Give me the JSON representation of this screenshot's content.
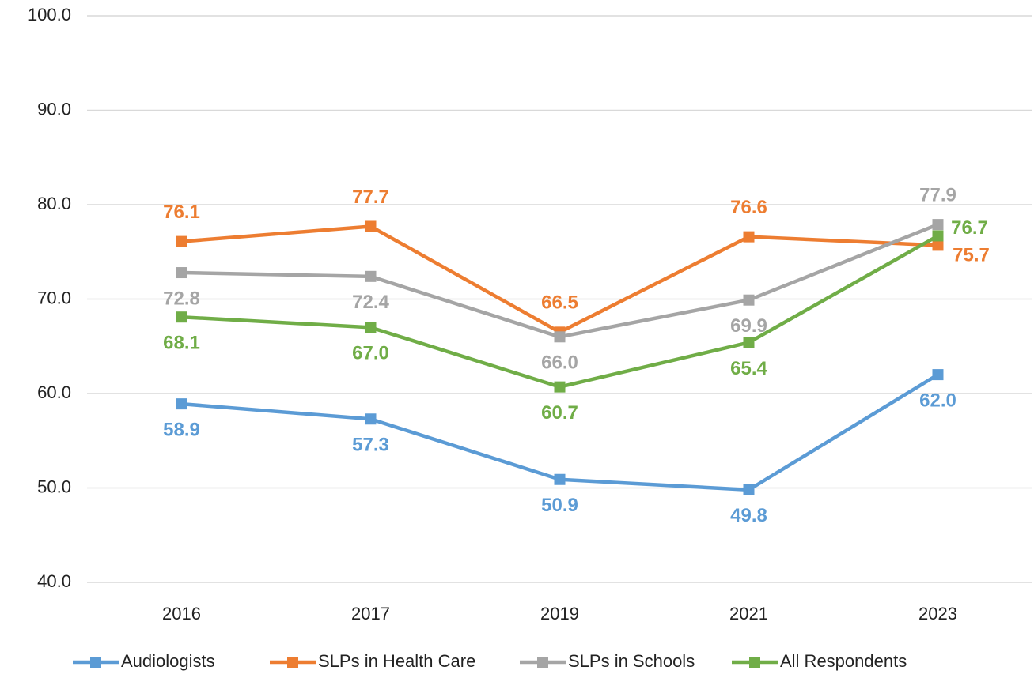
{
  "chart_data": {
    "type": "line",
    "categories": [
      "2016",
      "2017",
      "2019",
      "2021",
      "2023"
    ],
    "series": [
      {
        "name": "Audiologists",
        "color": "#5b9bd5",
        "values": [
          58.9,
          57.3,
          50.9,
          49.8,
          62.0
        ],
        "value_labels": [
          "58.9",
          "57.3",
          "50.9",
          "49.8",
          "62.0"
        ]
      },
      {
        "name": "SLPs in Health Care",
        "color": "#ed7d31",
        "values": [
          76.1,
          77.7,
          66.5,
          76.6,
          75.7
        ],
        "value_labels": [
          "76.1",
          "77.7",
          "66.5",
          "76.6",
          "75.7"
        ]
      },
      {
        "name": "SLPs in Schools",
        "color": "#a5a5a5",
        "values": [
          72.8,
          72.4,
          66.0,
          69.9,
          77.9
        ],
        "value_labels": [
          "72.8",
          "72.4",
          "66.0",
          "69.9",
          "77.9"
        ]
      },
      {
        "name": "All Respondents",
        "color": "#70ad47",
        "values": [
          68.1,
          67.0,
          60.7,
          65.4,
          76.7
        ],
        "value_labels": [
          "68.1",
          "67.0",
          "60.7",
          "65.4",
          "76.7"
        ]
      }
    ],
    "ylim": [
      40,
      100
    ],
    "yticks": [
      {
        "value": 40,
        "label": "40.0"
      },
      {
        "value": 50,
        "label": "50.0"
      },
      {
        "value": 60,
        "label": "60.0"
      },
      {
        "value": 70,
        "label": "70.0"
      },
      {
        "value": 80,
        "label": "80.0"
      },
      {
        "value": 90,
        "label": "90.0"
      },
      {
        "value": 100,
        "label": "100.0"
      }
    ],
    "grid": true,
    "legend": "bottom"
  }
}
